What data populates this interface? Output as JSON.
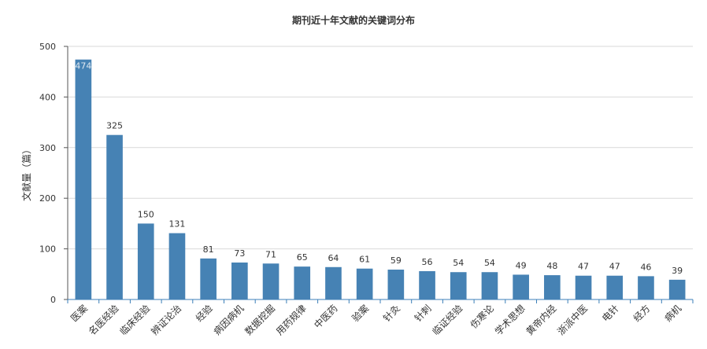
{
  "chart_data": {
    "type": "bar",
    "title": "期刊近十年文献的关键词分布",
    "ylabel": "文献量（篇）",
    "xlabel": "",
    "ylim": [
      0,
      500
    ],
    "yticks": [
      0,
      100,
      200,
      300,
      400,
      500
    ],
    "grid": true,
    "legend": "none",
    "bar_color": "#4682b4",
    "categories": [
      "医案",
      "名医经验",
      "临床经验",
      "辨证论治",
      "经验",
      "病因病机",
      "数据挖掘",
      "用药规律",
      "中医药",
      "验案",
      "针灸",
      "针刺",
      "临证经验",
      "伤寒论",
      "学术思想",
      "黄帝内经",
      "浙派中医",
      "电针",
      "经方",
      "病机"
    ],
    "values": [
      474,
      325,
      150,
      131,
      81,
      73,
      71,
      65,
      64,
      61,
      59,
      56,
      54,
      54,
      49,
      48,
      47,
      47,
      46,
      39
    ]
  }
}
